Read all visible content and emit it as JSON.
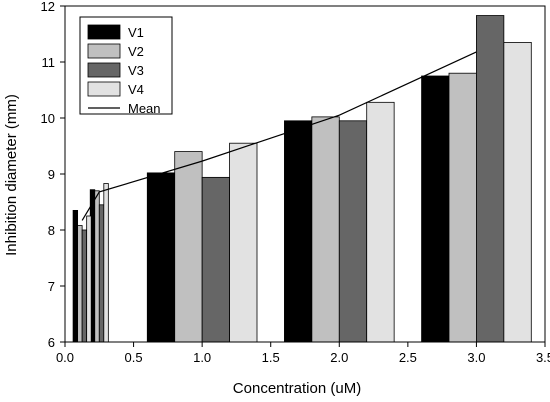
{
  "chart_data": {
    "type": "bar",
    "xlabel": "Concentration (uM)",
    "ylabel": "Inhibition diameter (mm)",
    "xlim": [
      0.0,
      3.5
    ],
    "ylim": [
      6,
      12
    ],
    "x_ticks": [
      "0.0",
      "0.5",
      "1.0",
      "1.5",
      "2.0",
      "2.5",
      "3.0",
      "3.5"
    ],
    "y_ticks": [
      "6",
      "7",
      "8",
      "9",
      "10",
      "11",
      "12"
    ],
    "grid": false,
    "legend_position": "top-left",
    "series": [
      {
        "name": "V1",
        "color": "#000000",
        "x": [
          0.125,
          0.25,
          1.0,
          2.0,
          3.0
        ],
        "values": [
          8.35,
          8.72,
          9.02,
          9.95,
          10.75
        ]
      },
      {
        "name": "V2",
        "color": "#c0c0c0",
        "x": [
          0.125,
          0.25,
          1.0,
          2.0,
          3.0
        ],
        "values": [
          8.08,
          8.7,
          9.4,
          10.02,
          10.8
        ]
      },
      {
        "name": "V3",
        "color": "#666666",
        "x": [
          0.125,
          0.25,
          1.0,
          2.0,
          3.0
        ],
        "values": [
          8.0,
          8.45,
          8.94,
          9.95,
          11.83
        ]
      },
      {
        "name": "V4",
        "color": "#e2e2e2",
        "x": [
          0.125,
          0.25,
          1.0,
          2.0,
          3.0
        ],
        "values": [
          8.25,
          8.83,
          9.55,
          10.28,
          11.35
        ]
      }
    ],
    "mean": {
      "name": "Mean",
      "color": "#000000",
      "x": [
        0.125,
        0.25,
        1.0,
        2.0,
        3.0
      ],
      "values": [
        8.17,
        8.68,
        9.23,
        10.05,
        11.18
      ]
    }
  }
}
